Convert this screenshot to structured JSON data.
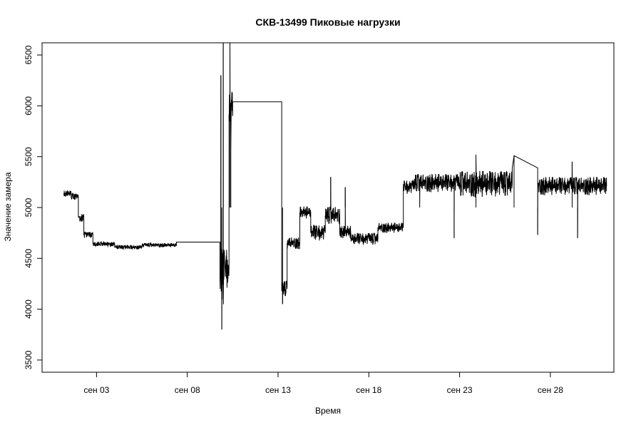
{
  "chart_data": {
    "type": "line",
    "title": "СКВ-13499 Пиковые нагрузки",
    "xlabel": "Время",
    "ylabel": "Значение замера",
    "ylim": [
      3380,
      6620
    ],
    "yticks": [
      3500,
      4000,
      4500,
      5000,
      5500,
      6000,
      6500
    ],
    "xlim": [
      0.0,
      31.5
    ],
    "xticks": [
      {
        "label": "сен 03",
        "day": 3
      },
      {
        "label": "сен 08",
        "day": 8
      },
      {
        "label": "сен 13",
        "day": 13
      },
      {
        "label": "сен 18",
        "day": 18
      },
      {
        "label": "сен 23",
        "day": 23
      },
      {
        "label": "сен 28",
        "day": 28
      }
    ],
    "grid": false,
    "series": [
      {
        "color": "#000000",
        "segments": [
          {
            "x0": 1.2,
            "x1": 1.6,
            "base": 5140,
            "noise": 30
          },
          {
            "x0": 1.6,
            "x1": 2.0,
            "base": 5110,
            "noise": 30
          },
          {
            "x0": 2.0,
            "x1": 2.3,
            "base": 4900,
            "noise": 40
          },
          {
            "x0": 2.3,
            "x1": 2.8,
            "base": 4730,
            "noise": 30
          },
          {
            "x0": 2.8,
            "x1": 4.0,
            "base": 4640,
            "noise": 22
          },
          {
            "x0": 4.0,
            "x1": 5.5,
            "base": 4610,
            "noise": 20
          },
          {
            "x0": 5.5,
            "x1": 7.4,
            "base": 4630,
            "noise": 20
          },
          {
            "x0": 7.4,
            "x1": 9.8,
            "base": 4660,
            "noise": 0
          },
          {
            "x0": 9.8,
            "x1": 10.0,
            "base": 4300,
            "noise": 300
          },
          {
            "x0": 10.0,
            "x1": 10.3,
            "base": 4400,
            "noise": 200
          },
          {
            "x0": 10.3,
            "x1": 10.5,
            "base": 5900,
            "noise": 250
          },
          {
            "x0": 10.5,
            "x1": 13.2,
            "base": 6040,
            "noise": 0
          },
          {
            "x0": 13.2,
            "x1": 13.5,
            "base": 4200,
            "noise": 80
          },
          {
            "x0": 13.5,
            "x1": 14.2,
            "base": 4650,
            "noise": 60
          },
          {
            "x0": 14.2,
            "x1": 14.8,
            "base": 4950,
            "noise": 60
          },
          {
            "x0": 14.8,
            "x1": 15.6,
            "base": 4750,
            "noise": 80
          },
          {
            "x0": 15.6,
            "x1": 16.4,
            "base": 4920,
            "noise": 90
          },
          {
            "x0": 16.4,
            "x1": 17.0,
            "base": 4760,
            "noise": 60
          },
          {
            "x0": 17.0,
            "x1": 18.5,
            "base": 4690,
            "noise": 60
          },
          {
            "x0": 18.5,
            "x1": 19.9,
            "base": 4800,
            "noise": 50
          },
          {
            "x0": 19.9,
            "x1": 20.5,
            "base": 5200,
            "noise": 70
          },
          {
            "x0": 20.5,
            "x1": 23.0,
            "base": 5240,
            "noise": 90
          },
          {
            "x0": 23.0,
            "x1": 25.9,
            "base": 5230,
            "noise": 130
          },
          {
            "x0": 25.9,
            "x1": 27.3,
            "base": 5390,
            "noise": 0
          },
          {
            "x0": 27.3,
            "x1": 31.1,
            "base": 5210,
            "noise": 90
          }
        ],
        "events": [
          {
            "day": 9.85,
            "value": 6300
          },
          {
            "day": 9.9,
            "value": 3800
          },
          {
            "day": 9.98,
            "value": 6620
          },
          {
            "day": 10.35,
            "value": 6620
          },
          {
            "day": 10.4,
            "value": 5560
          },
          {
            "day": 13.25,
            "value": 4050
          },
          {
            "day": 15.9,
            "value": 5300
          },
          {
            "day": 16.7,
            "value": 5200
          },
          {
            "day": 20.8,
            "value": 5000
          },
          {
            "day": 22.7,
            "value": 4700
          },
          {
            "day": 23.9,
            "value": 5520
          },
          {
            "day": 26.0,
            "value": 5510
          },
          {
            "day": 27.3,
            "value": 4730
          },
          {
            "day": 29.2,
            "value": 5450
          },
          {
            "day": 29.5,
            "value": 4700
          }
        ]
      }
    ]
  }
}
